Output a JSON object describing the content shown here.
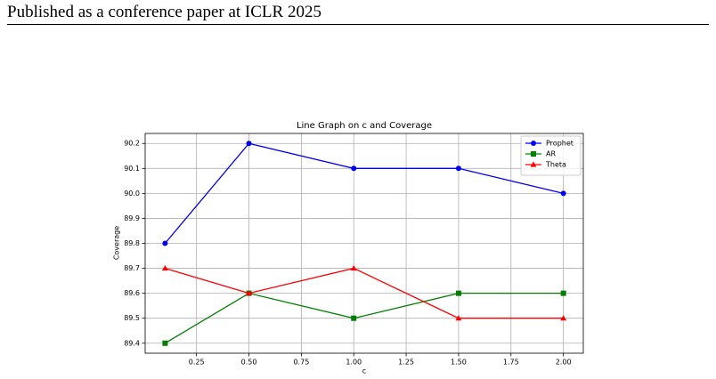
{
  "header": {
    "title": "Published as a conference paper at ICLR 2025"
  },
  "chart_data": {
    "type": "line",
    "title": "Line Graph on c and Coverage",
    "xlabel": "c",
    "ylabel": "Coverage",
    "x": [
      0.1,
      0.5,
      1.0,
      1.5,
      2.0
    ],
    "series": [
      {
        "name": "Prophet",
        "color": "#0000ff",
        "marker": "circle",
        "values": [
          89.8,
          90.2,
          90.1,
          90.1,
          90.0
        ]
      },
      {
        "name": "AR",
        "color": "#008000",
        "marker": "square",
        "values": [
          89.4,
          89.6,
          89.5,
          89.6,
          89.6
        ]
      },
      {
        "name": "Theta",
        "color": "#ff0000",
        "marker": "triangle",
        "values": [
          89.7,
          89.6,
          89.7,
          89.5,
          89.5
        ]
      }
    ],
    "xlim": [
      0.005,
      2.095
    ],
    "ylim": [
      89.36,
      90.24
    ],
    "xticks": [
      {
        "value": 0.25,
        "label": "0.25"
      },
      {
        "value": 0.5,
        "label": "0.50"
      },
      {
        "value": 0.75,
        "label": "0.75"
      },
      {
        "value": 1.0,
        "label": "1.00"
      },
      {
        "value": 1.25,
        "label": "1.25"
      },
      {
        "value": 1.5,
        "label": "1.50"
      },
      {
        "value": 1.75,
        "label": "1.75"
      },
      {
        "value": 2.0,
        "label": "2.00"
      }
    ],
    "yticks": [
      89.4,
      89.5,
      89.6,
      89.7,
      89.8,
      89.9,
      {
        "value": 90.0,
        "label": "90.0"
      },
      90.1,
      90.2
    ],
    "grid": true,
    "legend": "upper right"
  }
}
